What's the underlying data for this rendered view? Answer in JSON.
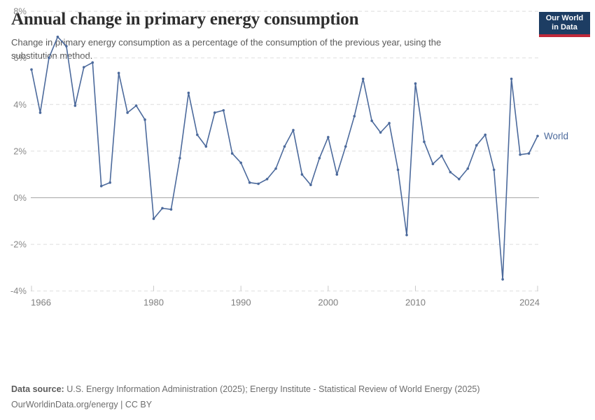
{
  "header": {
    "title": "Annual change in primary energy consumption",
    "subtitle_line1": "Change in primary energy consumption as a percentage of the consumption of the previous year, using the",
    "subtitle_line2": "substitution method.",
    "logo": {
      "line1": "Our World",
      "line2": "in Data",
      "bg_color": "#1d3d63",
      "accent_color": "#c0293a"
    }
  },
  "chart_data": {
    "type": "line",
    "title": "Annual change in primary energy consumption",
    "xlabel": "",
    "ylabel": "",
    "xlim": [
      1966,
      2024
    ],
    "ylim": [
      -4,
      8
    ],
    "grid": "horizontal-dashed",
    "zero_line": true,
    "legend_position": "end-of-line-label",
    "x_ticks": [
      1966,
      1980,
      1990,
      2000,
      2010,
      2024
    ],
    "x_tick_labels": [
      "1966",
      "1980",
      "1990",
      "2000",
      "2010",
      "2024"
    ],
    "y_ticks": [
      8,
      6,
      4,
      2,
      0,
      -2,
      -4
    ],
    "y_tick_labels": [
      "8%",
      "6%",
      "4%",
      "2%",
      "0%",
      "-2%",
      "-4%"
    ],
    "series": [
      {
        "name": "World",
        "color": "#4C6A9C",
        "x": [
          1966,
          1967,
          1968,
          1969,
          1970,
          1971,
          1972,
          1973,
          1974,
          1975,
          1976,
          1977,
          1978,
          1979,
          1980,
          1981,
          1982,
          1983,
          1984,
          1985,
          1986,
          1987,
          1988,
          1989,
          1990,
          1991,
          1992,
          1993,
          1994,
          1995,
          1996,
          1997,
          1998,
          1999,
          2000,
          2001,
          2002,
          2003,
          2004,
          2005,
          2006,
          2007,
          2008,
          2009,
          2010,
          2011,
          2012,
          2013,
          2014,
          2015,
          2016,
          2017,
          2018,
          2019,
          2020,
          2021,
          2022,
          2023,
          2024
        ],
        "values": [
          5.5,
          3.65,
          6.0,
          6.9,
          6.5,
          3.95,
          5.6,
          5.8,
          0.5,
          0.65,
          5.35,
          3.65,
          3.95,
          3.35,
          -0.9,
          -0.45,
          -0.5,
          1.7,
          4.5,
          2.7,
          2.2,
          3.65,
          3.75,
          1.9,
          1.5,
          0.65,
          0.6,
          0.8,
          1.25,
          2.2,
          2.9,
          1.0,
          0.55,
          1.7,
          2.6,
          1.0,
          2.2,
          3.5,
          5.1,
          3.3,
          2.8,
          3.2,
          1.2,
          -1.6,
          4.9,
          2.4,
          1.45,
          1.8,
          1.1,
          0.8,
          1.25,
          2.25,
          2.7,
          1.2,
          -3.5,
          5.1,
          1.85,
          1.9,
          2.65
        ]
      }
    ],
    "end_label": "World"
  },
  "footer": {
    "sources_label": "Data source:",
    "sources_text": "U.S. Energy Information Administration (2025); Energy Institute - Statistical Review of World Energy (2025)",
    "license_url": "OurWorldinData.org/energy",
    "separator": "|",
    "license_text": "CC BY"
  }
}
